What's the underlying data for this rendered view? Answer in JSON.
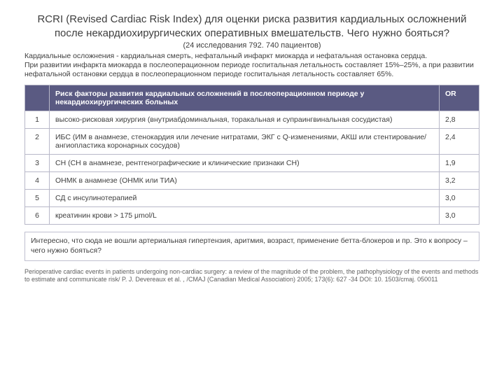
{
  "title": "RCRI (Revised Cardiac Risk Index) для оценки риска развития кардиальных осложнений после некардиохирургических оперативных вмешательств. Чего нужно бояться?",
  "subtitle": "(24 исследования 792. 740 пациентов)",
  "intro": "Кардиальные осложнения - кардиальная смерть, нефатальный инфаркт миокарда и нефатальная остановка сердца.\nПри развитии инфаркта миокарда в послеоперационном периоде госпитальная летальность составляет 15%–25%, а при развитии нефатальной остановки сердца в послеоперационном периоде госпитальная летальность составляет 65%.",
  "table": {
    "header_factors": "Риск факторы развития кардиальных осложнений в послеоперационном периоде у некардиохирургических больных",
    "header_or": "OR",
    "header_color": "#5a5a82",
    "header_text_color": "#ffffff",
    "border_color": "#b8b8c8",
    "font_size": 10.5,
    "rows": [
      {
        "n": "1",
        "factor": "высоко-рисковая хирургия (внутриабдоминальная, торакальная и супраингвинальная сосудистая)",
        "or": "2,8"
      },
      {
        "n": "2",
        "factor": "ИБС (ИМ в анамнезе, стенокардия или лечение нитратами, ЭКГ с Q-изменениями, АКШ или стентирование/ангиопластика коронарных сосудов)",
        "or": "2,4"
      },
      {
        "n": "3",
        "factor": "СН (СН в анамнезе, рентгенографические и клинические признаки СН)",
        "or": "1,9"
      },
      {
        "n": "4",
        "factor": "ОНМК в анамнезе (ОНМК или ТИА)",
        "or": "3,2"
      },
      {
        "n": "5",
        "factor": "СД с инсулинотерапией",
        "or": "3,0"
      },
      {
        "n": "6",
        "factor": "креатинин крови > 175 μmol/L",
        "or": "3,0"
      }
    ]
  },
  "note": "Интересно, что сюда не вошли артериальная гипертензия, аритмия, возраст, применение бетта-блокеров и пр. Это к вопросу – чего нужно бояться?",
  "footer": "Perioperative cardiac events in patients undergoing non-cardiac surgery: a review of the magnitude of the problem, the pathophysiology of the events and methods to estimate and communicate risk/ P. J. Devereaux et al. , /CMAJ (Canadian Medical Association) 2005; 173(6): 627 -34 DOI: 10. 1503/cmaj. 050011"
}
